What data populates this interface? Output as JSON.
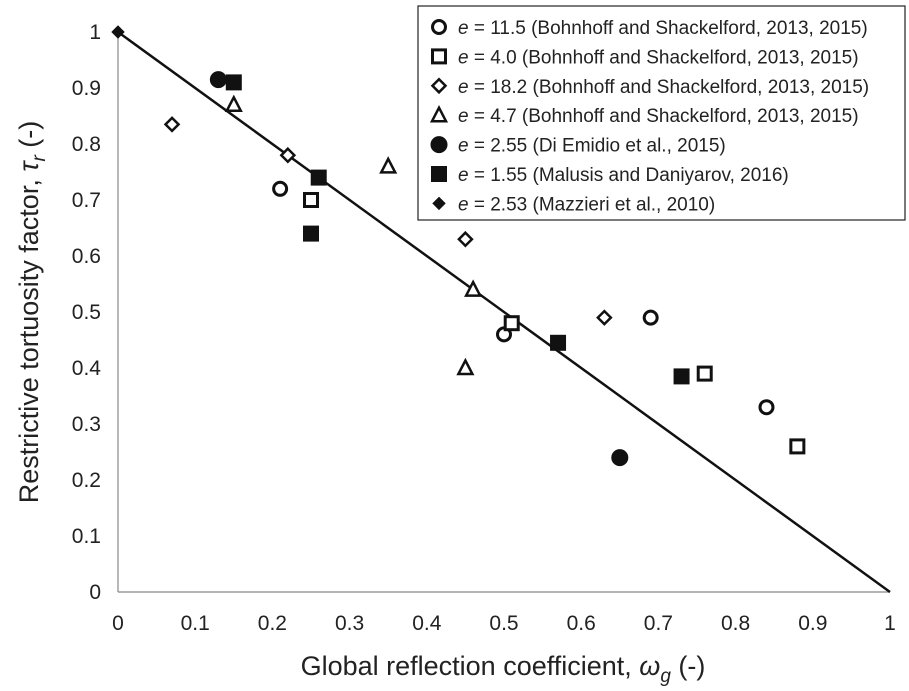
{
  "chart_data": {
    "type": "scatter",
    "xlabel": "Global reflection coefficient,",
    "xlabel_symbol": "ω",
    "xlabel_sub": "g",
    "xlabel_unit": "(-)",
    "ylabel": "Restrictive tortuosity factor,",
    "ylabel_symbol": "τ",
    "ylabel_sub": "r",
    "ylabel_unit": "(-)",
    "xlim": [
      0,
      1
    ],
    "ylim": [
      0,
      1
    ],
    "x_ticks": [
      "0",
      "0.1",
      "0.2",
      "0.3",
      "0.4",
      "0.5",
      "0.6",
      "0.7",
      "0.8",
      "0.9",
      "1"
    ],
    "y_ticks": [
      "0",
      "0.1",
      "0.2",
      "0.3",
      "0.4",
      "0.5",
      "0.6",
      "0.7",
      "0.8",
      "0.9",
      "1"
    ],
    "grid": false,
    "legend_position": "top-right",
    "series": [
      {
        "name": "= 11.5 (Bohnhoff and Shackelford, 2013, 2015)",
        "marker": "open-circle",
        "points": [
          [
            0.21,
            0.72
          ],
          [
            0.5,
            0.46
          ],
          [
            0.69,
            0.49
          ],
          [
            0.84,
            0.33
          ]
        ]
      },
      {
        "name": "= 4.0 (Bohnhoff and Shackelford, 2013, 2015)",
        "marker": "open-square",
        "points": [
          [
            0.25,
            0.7
          ],
          [
            0.51,
            0.48
          ],
          [
            0.76,
            0.39
          ],
          [
            0.88,
            0.26
          ]
        ]
      },
      {
        "name": "= 18.2 (Bohnhoff and Shackelford, 2013, 2015)",
        "marker": "open-diamond",
        "points": [
          [
            0.07,
            0.835
          ],
          [
            0.22,
            0.78
          ],
          [
            0.45,
            0.63
          ],
          [
            0.63,
            0.49
          ]
        ]
      },
      {
        "name": "= 4.7 (Bohnhoff and Shackelford, 2013, 2015)",
        "marker": "open-triangle",
        "points": [
          [
            0.15,
            0.87
          ],
          [
            0.35,
            0.76
          ],
          [
            0.46,
            0.54
          ],
          [
            0.45,
            0.4
          ]
        ]
      },
      {
        "name": "= 2.55 (Di Emidio et al., 2015)",
        "marker": "filled-circle",
        "points": [
          [
            0.13,
            0.915
          ],
          [
            0.65,
            0.24
          ]
        ]
      },
      {
        "name": "= 1.55 (Malusis and Daniyarov, 2016)",
        "marker": "filled-square",
        "points": [
          [
            0.15,
            0.91
          ],
          [
            0.26,
            0.74
          ],
          [
            0.25,
            0.64
          ],
          [
            0.57,
            0.445
          ],
          [
            0.73,
            0.385
          ]
        ]
      },
      {
        "name": "= 2.53 (Mazzieri et al., 2010)",
        "marker": "filled-diamond",
        "points": [
          [
            0,
            1
          ]
        ]
      }
    ],
    "legend_prefix": "e",
    "reference_line": {
      "from": [
        0,
        1
      ],
      "to": [
        1,
        0
      ]
    }
  }
}
